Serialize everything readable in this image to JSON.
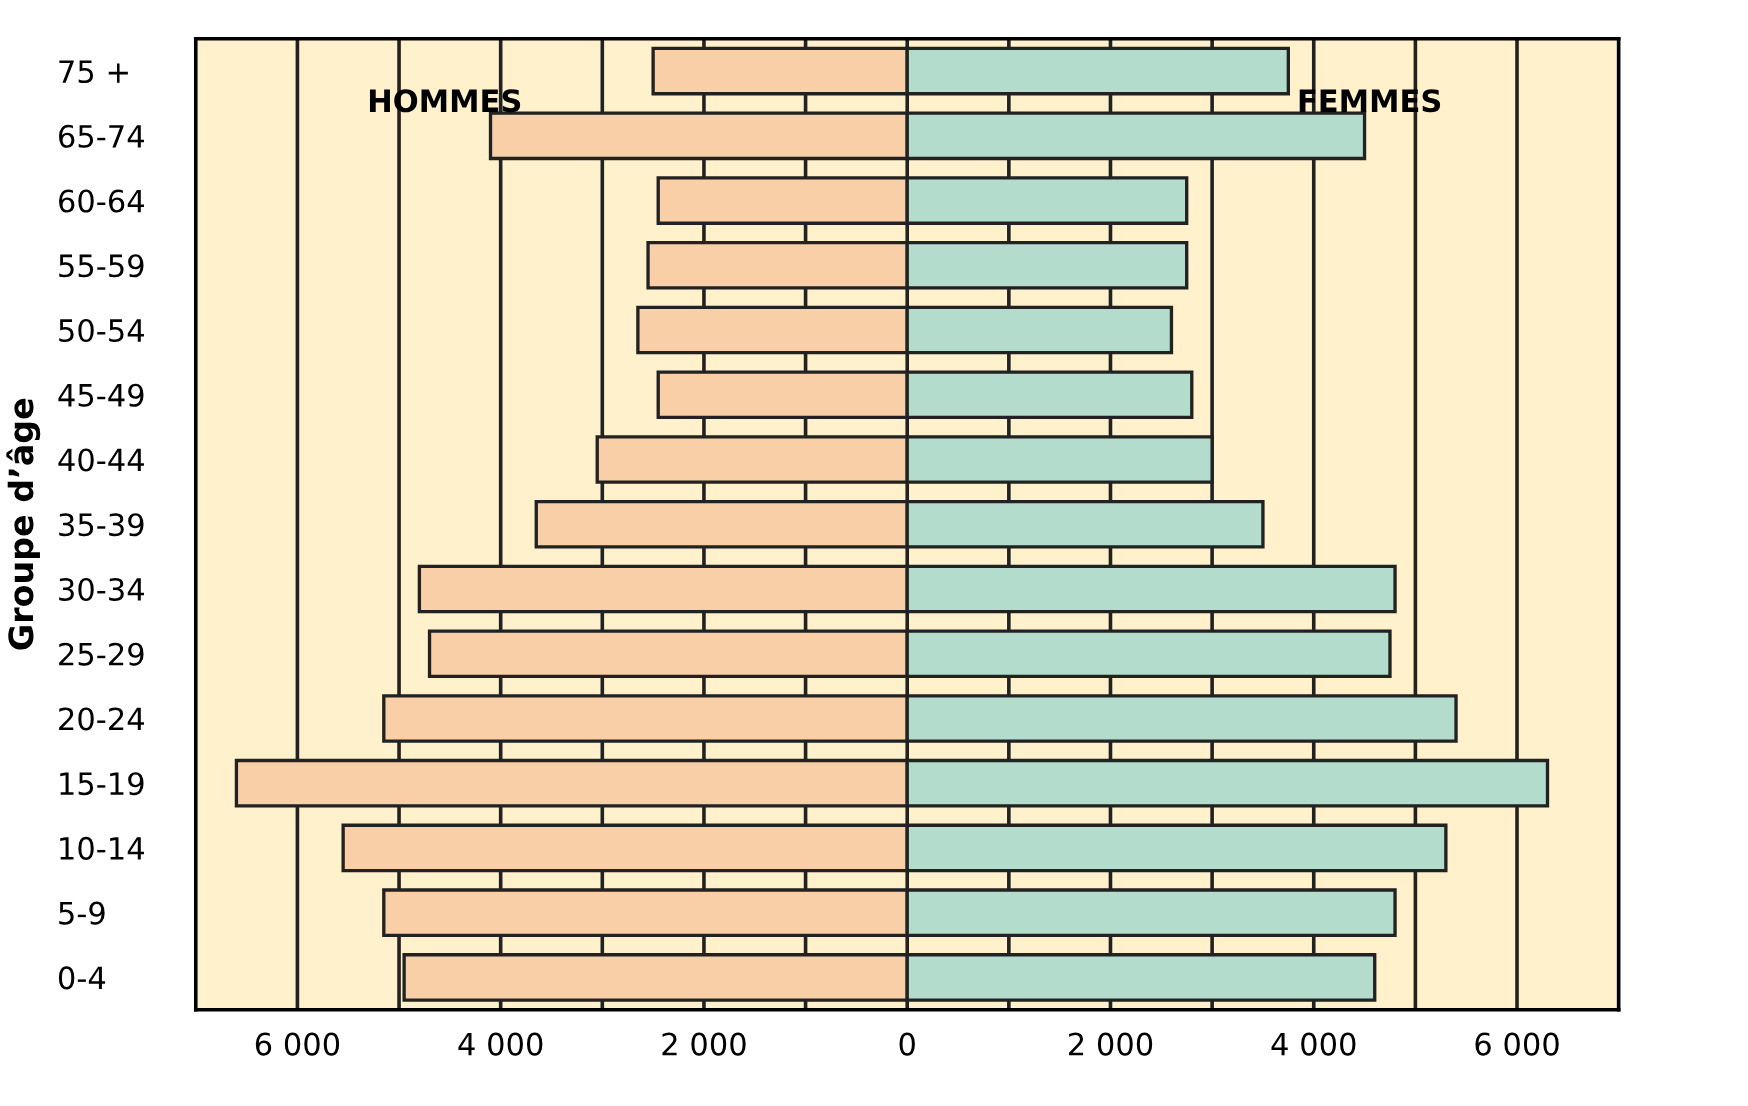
{
  "chart_data": {
    "type": "bar",
    "orientation": "horizontal",
    "ylabel": "Groupe d’âge",
    "categories": [
      "75 +",
      "65-74",
      "60-64",
      "55-59",
      "50-54",
      "45-49",
      "40-44",
      "35-39",
      "30-34",
      "25-29",
      "20-24",
      "15-19",
      "10-14",
      "5-9",
      "0-4"
    ],
    "series": [
      {
        "name": "HOMMES",
        "color": "#f9cfa8",
        "values": [
          -2500,
          -4100,
          -2450,
          -2550,
          -2650,
          -2450,
          -3050,
          -3650,
          -4800,
          -4700,
          -5150,
          -6600,
          -5550,
          -5150,
          -4950
        ]
      },
      {
        "name": "FEMMES",
        "color": "#b3dccd",
        "values": [
          3750,
          4500,
          2750,
          2750,
          2600,
          2800,
          3000,
          3500,
          4800,
          4750,
          5400,
          6300,
          5300,
          4800,
          4600
        ]
      }
    ],
    "xlim": [
      -7000,
      7000
    ],
    "xticks": [
      {
        "value": -6000,
        "label": "6 000"
      },
      {
        "value": -5000,
        "label": null
      },
      {
        "value": -4000,
        "label": "4 000"
      },
      {
        "value": -3000,
        "label": null
      },
      {
        "value": -2000,
        "label": "2 000"
      },
      {
        "value": -1000,
        "label": null
      },
      0,
      {
        "value": 1000,
        "label": null
      },
      {
        "value": 2000,
        "label": "2 000"
      },
      {
        "value": 3000,
        "label": null
      },
      {
        "value": 4000,
        "label": "4 000"
      },
      {
        "value": 5000,
        "label": null
      },
      {
        "value": 6000,
        "label": "6 000"
      }
    ],
    "grid": "x",
    "stacked": true
  }
}
